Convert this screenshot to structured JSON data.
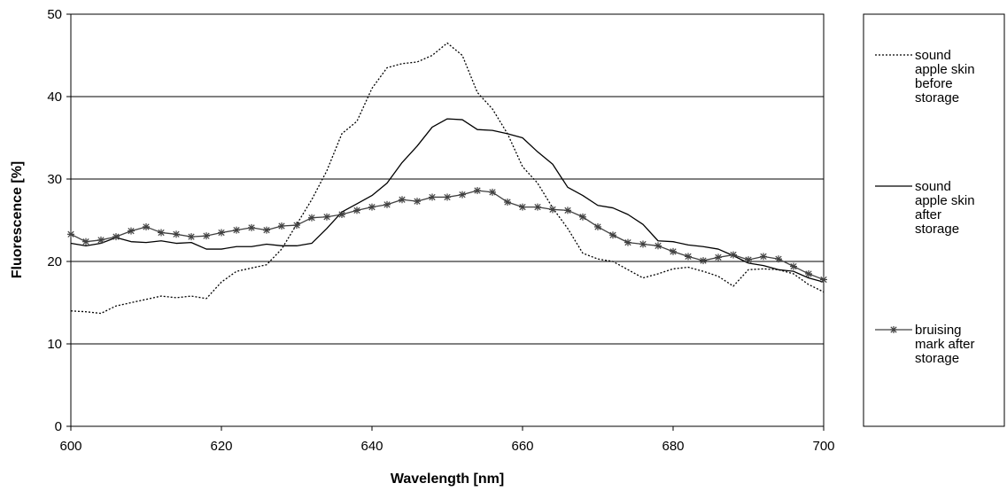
{
  "chart_data": {
    "type": "line",
    "title": "",
    "xlabel": "Wavelength [nm]",
    "ylabel": "Fluorescence [%]",
    "xlim": [
      600,
      700
    ],
    "ylim": [
      0,
      50
    ],
    "x_ticks": [
      600,
      620,
      640,
      660,
      680,
      700
    ],
    "y_ticks": [
      0,
      10,
      20,
      30,
      40,
      50
    ],
    "grid": "horizontal major gridlines",
    "legend_position": "right",
    "series": [
      {
        "name": "sound apple skin before storage",
        "legend_lines": [
          "sound",
          "apple skin",
          "before",
          "storage"
        ],
        "style": "dotted",
        "color": "#000000",
        "marker": "none",
        "points": [
          [
            600,
            14.0
          ],
          [
            602,
            13.9
          ],
          [
            604,
            13.7
          ],
          [
            606,
            14.6
          ],
          [
            608,
            15.0
          ],
          [
            610,
            15.4
          ],
          [
            612,
            15.8
          ],
          [
            614,
            15.6
          ],
          [
            616,
            15.8
          ],
          [
            618,
            15.5
          ],
          [
            620,
            17.5
          ],
          [
            622,
            18.8
          ],
          [
            624,
            19.2
          ],
          [
            626,
            19.6
          ],
          [
            628,
            21.5
          ],
          [
            630,
            24.5
          ],
          [
            632,
            27.5
          ],
          [
            634,
            31.0
          ],
          [
            636,
            35.5
          ],
          [
            638,
            37.0
          ],
          [
            640,
            41.0
          ],
          [
            642,
            43.5
          ],
          [
            644,
            44.0
          ],
          [
            646,
            44.2
          ],
          [
            648,
            45.0
          ],
          [
            650,
            46.5
          ],
          [
            652,
            45.0
          ],
          [
            654,
            40.5
          ],
          [
            656,
            38.5
          ],
          [
            658,
            35.5
          ],
          [
            660,
            31.5
          ],
          [
            662,
            29.5
          ],
          [
            664,
            26.5
          ],
          [
            666,
            24.0
          ],
          [
            668,
            21.0
          ],
          [
            670,
            20.3
          ],
          [
            672,
            20.0
          ],
          [
            674,
            19.0
          ],
          [
            676,
            18.0
          ],
          [
            678,
            18.5
          ],
          [
            680,
            19.1
          ],
          [
            682,
            19.3
          ],
          [
            684,
            18.8
          ],
          [
            686,
            18.2
          ],
          [
            688,
            17.0
          ],
          [
            690,
            19.0
          ],
          [
            692,
            19.1
          ],
          [
            694,
            19.0
          ],
          [
            696,
            18.5
          ],
          [
            698,
            17.2
          ],
          [
            700,
            16.3
          ]
        ]
      },
      {
        "name": "sound apple skin after storage",
        "legend_lines": [
          "sound",
          "apple skin",
          "after",
          "storage"
        ],
        "style": "solid",
        "color": "#000000",
        "marker": "none",
        "points": [
          [
            600,
            22.2
          ],
          [
            602,
            21.9
          ],
          [
            604,
            22.2
          ],
          [
            606,
            22.9
          ],
          [
            608,
            22.4
          ],
          [
            610,
            22.3
          ],
          [
            612,
            22.5
          ],
          [
            614,
            22.2
          ],
          [
            616,
            22.3
          ],
          [
            618,
            21.5
          ],
          [
            620,
            21.5
          ],
          [
            622,
            21.8
          ],
          [
            624,
            21.8
          ],
          [
            626,
            22.1
          ],
          [
            628,
            21.9
          ],
          [
            630,
            21.9
          ],
          [
            632,
            22.2
          ],
          [
            634,
            24.0
          ],
          [
            636,
            26.0
          ],
          [
            638,
            27.0
          ],
          [
            640,
            28.0
          ],
          [
            642,
            29.5
          ],
          [
            644,
            32.0
          ],
          [
            646,
            34.0
          ],
          [
            648,
            36.3
          ],
          [
            650,
            37.3
          ],
          [
            652,
            37.2
          ],
          [
            654,
            36.0
          ],
          [
            656,
            35.9
          ],
          [
            658,
            35.5
          ],
          [
            660,
            35.0
          ],
          [
            662,
            33.3
          ],
          [
            664,
            31.8
          ],
          [
            666,
            29.0
          ],
          [
            668,
            28.0
          ],
          [
            670,
            26.8
          ],
          [
            672,
            26.5
          ],
          [
            674,
            25.7
          ],
          [
            676,
            24.5
          ],
          [
            678,
            22.5
          ],
          [
            680,
            22.4
          ],
          [
            682,
            22.0
          ],
          [
            684,
            21.8
          ],
          [
            686,
            21.5
          ],
          [
            688,
            20.7
          ],
          [
            690,
            19.8
          ],
          [
            692,
            19.5
          ],
          [
            694,
            19.0
          ],
          [
            696,
            18.8
          ],
          [
            698,
            18.0
          ],
          [
            700,
            17.5
          ]
        ]
      },
      {
        "name": "bruising mark after storage",
        "legend_lines": [
          "bruising",
          "mark after",
          "storage"
        ],
        "style": "solid",
        "color": "#404040",
        "marker": "asterisk",
        "points": [
          [
            600,
            23.3
          ],
          [
            602,
            22.4
          ],
          [
            604,
            22.6
          ],
          [
            606,
            23.0
          ],
          [
            608,
            23.7
          ],
          [
            610,
            24.2
          ],
          [
            612,
            23.5
          ],
          [
            614,
            23.3
          ],
          [
            616,
            23.0
          ],
          [
            618,
            23.1
          ],
          [
            620,
            23.5
          ],
          [
            622,
            23.8
          ],
          [
            624,
            24.1
          ],
          [
            626,
            23.8
          ],
          [
            628,
            24.3
          ],
          [
            630,
            24.4
          ],
          [
            632,
            25.3
          ],
          [
            634,
            25.4
          ],
          [
            636,
            25.7
          ],
          [
            638,
            26.2
          ],
          [
            640,
            26.6
          ],
          [
            642,
            26.9
          ],
          [
            644,
            27.5
          ],
          [
            646,
            27.3
          ],
          [
            648,
            27.8
          ],
          [
            650,
            27.8
          ],
          [
            652,
            28.1
          ],
          [
            654,
            28.6
          ],
          [
            656,
            28.4
          ],
          [
            658,
            27.2
          ],
          [
            660,
            26.6
          ],
          [
            662,
            26.6
          ],
          [
            664,
            26.3
          ],
          [
            666,
            26.2
          ],
          [
            668,
            25.4
          ],
          [
            670,
            24.2
          ],
          [
            672,
            23.2
          ],
          [
            674,
            22.3
          ],
          [
            676,
            22.1
          ],
          [
            678,
            21.9
          ],
          [
            680,
            21.2
          ],
          [
            682,
            20.6
          ],
          [
            684,
            20.1
          ],
          [
            686,
            20.5
          ],
          [
            688,
            20.8
          ],
          [
            690,
            20.2
          ],
          [
            692,
            20.6
          ],
          [
            694,
            20.3
          ],
          [
            696,
            19.4
          ],
          [
            698,
            18.5
          ],
          [
            700,
            17.8
          ]
        ]
      }
    ]
  }
}
